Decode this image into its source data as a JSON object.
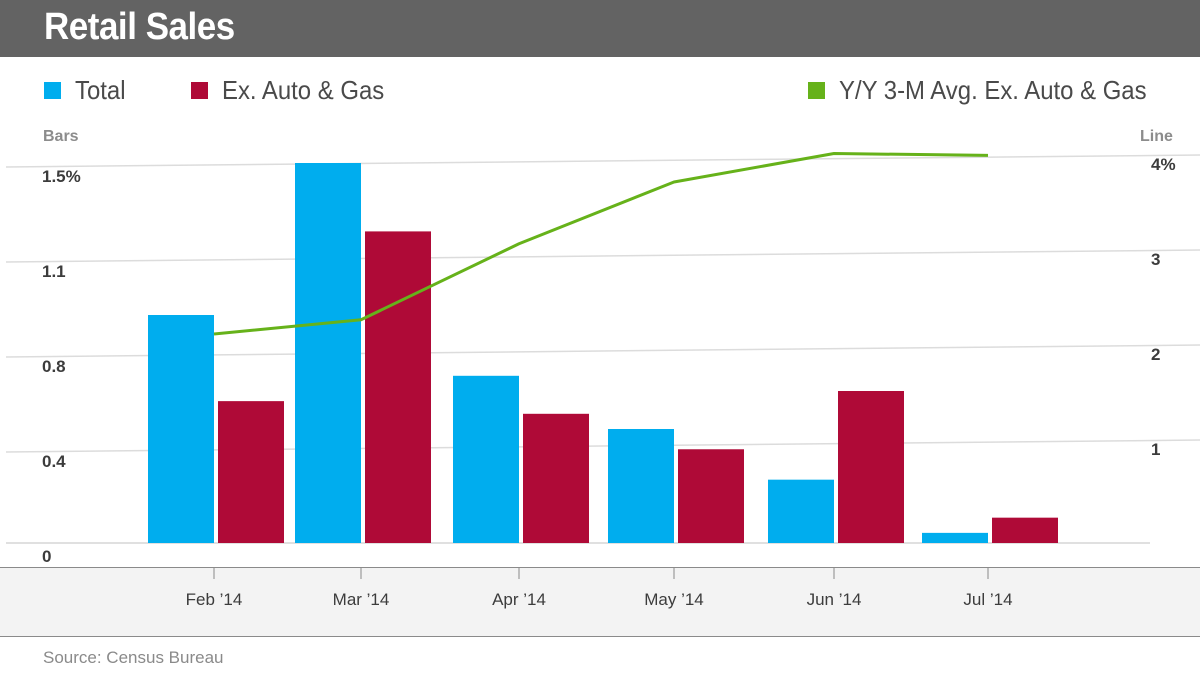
{
  "header": {
    "title": "Retail Sales"
  },
  "footer": {
    "source": "Source: Census Bureau"
  },
  "colors": {
    "total": "#00adee",
    "ex_auto_gas": "#af0a37",
    "line": "#66b21a",
    "header_bg": "#636363"
  },
  "chart_data": {
    "type": "bar",
    "title": "Retail Sales",
    "categories": [
      "Feb ’14",
      "Mar ’14",
      "Apr ’14",
      "May ’14",
      "Jun ’14",
      "Jul ’14"
    ],
    "series": [
      {
        "name": "Total",
        "type": "bar",
        "axis": "left",
        "values": [
          0.9,
          1.5,
          0.66,
          0.45,
          0.25,
          0.04
        ]
      },
      {
        "name": "Ex. Auto & Gas",
        "type": "bar",
        "axis": "left",
        "values": [
          0.56,
          1.23,
          0.51,
          0.37,
          0.6,
          0.1
        ]
      },
      {
        "name": "Y/Y 3-M Avg. Ex. Auto & Gas",
        "type": "line",
        "axis": "right",
        "values": [
          2.2,
          2.35,
          3.15,
          3.8,
          4.1,
          4.08
        ]
      }
    ],
    "y_left": {
      "label": "Bars",
      "ticks": [
        "0",
        "0.4",
        "0.8",
        "1.1",
        "1.5%"
      ],
      "tick_values": [
        0,
        0.375,
        0.75,
        1.125,
        1.5
      ],
      "lim": [
        0,
        1.5
      ]
    },
    "y_right": {
      "label": "Line",
      "ticks": [
        "1",
        "2",
        "3",
        "4%"
      ],
      "tick_values": [
        1,
        2,
        3,
        4
      ],
      "lim": [
        0,
        4
      ]
    },
    "grid": true,
    "legend": "top"
  }
}
